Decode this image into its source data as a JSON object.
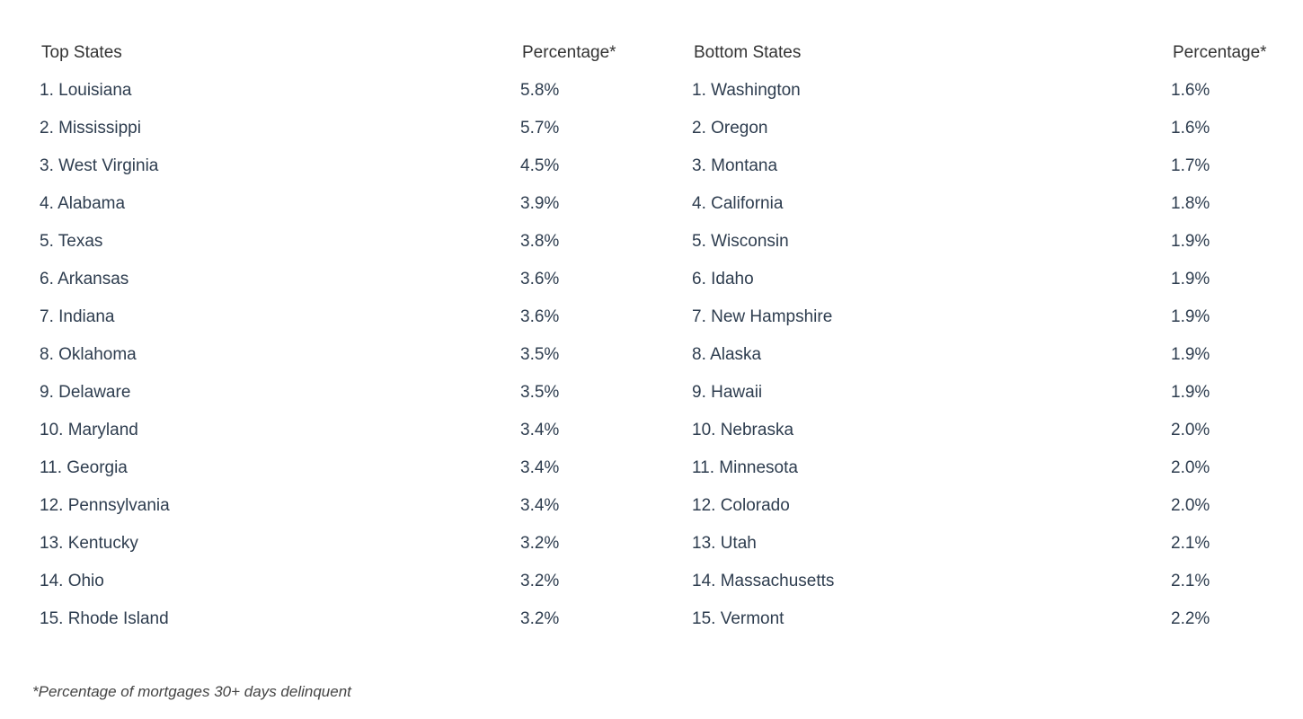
{
  "tables": [
    {
      "header": [
        "Top States",
        "Percentage*"
      ],
      "rows": [
        [
          "1. Louisiana",
          "5.8%"
        ],
        [
          "2. Mississippi",
          "5.7%"
        ],
        [
          "3. West Virginia",
          "4.5%"
        ],
        [
          "4. Alabama",
          "3.9%"
        ],
        [
          "5. Texas",
          "3.8%"
        ],
        [
          "6. Arkansas",
          "3.6%"
        ],
        [
          "7. Indiana",
          "3.6%"
        ],
        [
          "8. Oklahoma",
          "3.5%"
        ],
        [
          "9. Delaware",
          "3.5%"
        ],
        [
          "10. Maryland",
          "3.4%"
        ],
        [
          "11. Georgia",
          "3.4%"
        ],
        [
          "12. Pennsylvania",
          "3.4%"
        ],
        [
          "13. Kentucky",
          "3.2%"
        ],
        [
          "14. Ohio",
          "3.2%"
        ],
        [
          "15. Rhode Island",
          "3.2%"
        ]
      ]
    },
    {
      "header": [
        "Bottom States",
        "Percentage*"
      ],
      "rows": [
        [
          "1. Washington",
          "1.6%"
        ],
        [
          "2. Oregon",
          "1.6%"
        ],
        [
          "3. Montana",
          "1.7%"
        ],
        [
          "4. California",
          "1.8%"
        ],
        [
          "5. Wisconsin",
          "1.9%"
        ],
        [
          "6. Idaho",
          "1.9%"
        ],
        [
          "7. New Hampshire",
          "1.9%"
        ],
        [
          "8. Alaska",
          "1.9%"
        ],
        [
          "9. Hawaii",
          "1.9%"
        ],
        [
          "10. Nebraska",
          "2.0%"
        ],
        [
          "11. Minnesota",
          "2.0%"
        ],
        [
          "12. Colorado",
          "2.0%"
        ],
        [
          "13. Utah",
          "2.1%"
        ],
        [
          "14. Massachusetts",
          "2.1%"
        ],
        [
          "15. Vermont",
          "2.2%"
        ]
      ]
    }
  ],
  "footnote": "*Percentage of mortgages 30+ days delinquent"
}
